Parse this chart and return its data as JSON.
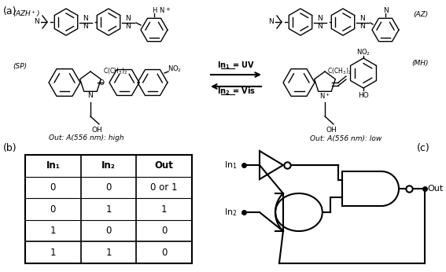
{
  "panel_a_label": "(a)",
  "panel_b_label": "(b)",
  "panel_c_label": "(c)",
  "table_headers": [
    "In₁",
    "In₂",
    "Out"
  ],
  "table_rows": [
    [
      "0",
      "0",
      "0 or 1"
    ],
    [
      "0",
      "1",
      "1"
    ],
    [
      "1",
      "0",
      "0"
    ],
    [
      "1",
      "1",
      "0"
    ]
  ],
  "background_color": "#ffffff",
  "line_color": "#000000"
}
